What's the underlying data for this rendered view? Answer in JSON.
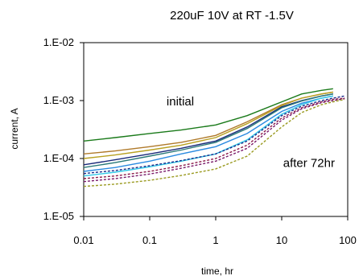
{
  "chart_data": {
    "type": "line",
    "title": "220uF 10V at RT -1.5V",
    "xlabel": "time, hr",
    "ylabel": "current, A",
    "x_scale": "log",
    "y_scale": "log",
    "xlim": [
      0.01,
      100
    ],
    "ylim": [
      1e-05,
      0.01
    ],
    "x_ticks": [
      0.01,
      0.1,
      1,
      10,
      100
    ],
    "x_tick_labels": [
      "0.01",
      "0.1",
      "1",
      "10",
      "100"
    ],
    "y_ticks": [
      1e-05,
      0.0001,
      0.001,
      0.01
    ],
    "y_tick_labels": [
      "1.E-05",
      "1.E-04",
      "1.E-03",
      "1.E-02"
    ],
    "grid": false,
    "annotations": [
      {
        "text": "initial",
        "x": 0.18,
        "y": 0.00083
      },
      {
        "text": "after 72hr",
        "x": 10.5,
        "y": 7.2e-05
      }
    ],
    "series": [
      {
        "style": "solid",
        "color": "#1a7a1a",
        "x": [
          0.01,
          0.03,
          0.1,
          0.3,
          1,
          3,
          10,
          20,
          40,
          60
        ],
        "y": [
          0.0002,
          0.00023,
          0.00027,
          0.00031,
          0.00038,
          0.00055,
          0.00095,
          0.0013,
          0.0015,
          0.0016
        ]
      },
      {
        "style": "solid",
        "color": "#b07a2a",
        "x": [
          0.01,
          0.03,
          0.1,
          0.3,
          1,
          3,
          10,
          20,
          40,
          60
        ],
        "y": [
          0.00012,
          0.000135,
          0.00016,
          0.00019,
          0.00025,
          0.00043,
          0.00085,
          0.0011,
          0.0013,
          0.0014
        ]
      },
      {
        "style": "solid",
        "color": "#b8a020",
        "x": [
          0.01,
          0.03,
          0.1,
          0.3,
          1,
          3,
          10,
          20,
          40,
          60
        ],
        "y": [
          0.0001,
          0.000115,
          0.00014,
          0.00017,
          0.00023,
          0.0004,
          0.00082,
          0.0011,
          0.0013,
          0.0014
        ]
      },
      {
        "style": "solid",
        "color": "#1a2a7a",
        "x": [
          0.01,
          0.03,
          0.1,
          0.3,
          1,
          3,
          10,
          20,
          40,
          60
        ],
        "y": [
          7.8e-05,
          9.5e-05,
          0.00012,
          0.00015,
          0.0002,
          0.00035,
          0.00078,
          0.001,
          0.0012,
          0.0013
        ]
      },
      {
        "style": "solid",
        "color": "#2a7a7a",
        "x": [
          0.01,
          0.03,
          0.1,
          0.3,
          1,
          3,
          10,
          20,
          40,
          60
        ],
        "y": [
          7e-05,
          8.5e-05,
          0.00011,
          0.00014,
          0.00019,
          0.00033,
          0.00075,
          0.00098,
          0.0012,
          0.0013
        ]
      },
      {
        "style": "solid",
        "color": "#2a8ae0",
        "x": [
          0.01,
          0.03,
          0.1,
          0.3,
          1,
          3,
          10,
          20,
          40,
          60
        ],
        "y": [
          6e-05,
          7e-05,
          9e-05,
          0.00012,
          0.00016,
          0.00027,
          0.00065,
          0.0009,
          0.0011,
          0.0012
        ]
      },
      {
        "style": "solid",
        "color": "#30c8e8",
        "x": [
          0.01,
          0.03,
          0.1,
          0.3,
          1,
          3,
          10,
          20,
          40,
          60
        ],
        "y": [
          5e-05,
          5.8e-05,
          7.2e-05,
          9e-05,
          0.00012,
          0.00021,
          0.00058,
          0.00085,
          0.0011,
          0.0012
        ]
      },
      {
        "style": "dashed",
        "color": "#1a2a8a",
        "x": [
          0.01,
          0.03,
          0.1,
          0.3,
          1,
          3,
          10,
          20,
          40,
          60,
          90
        ],
        "y": [
          5.5e-05,
          6.2e-05,
          7.5e-05,
          9.2e-05,
          0.00012,
          0.0002,
          0.00055,
          0.0008,
          0.001,
          0.0011,
          0.0012
        ]
      },
      {
        "style": "dashed",
        "color": "#8a1a4a",
        "x": [
          0.01,
          0.03,
          0.1,
          0.3,
          1,
          3,
          10,
          20,
          40,
          60,
          90
        ],
        "y": [
          4.5e-05,
          5e-05,
          6e-05,
          7.5e-05,
          0.0001,
          0.00017,
          0.0005,
          0.00075,
          0.00095,
          0.00105,
          0.0011
        ]
      },
      {
        "style": "dashed",
        "color": "#7a1a6a",
        "x": [
          0.01,
          0.03,
          0.1,
          0.3,
          1,
          3,
          10,
          20,
          40,
          60,
          90
        ],
        "y": [
          4e-05,
          4.5e-05,
          5.4e-05,
          6.8e-05,
          9e-05,
          0.00015,
          0.00046,
          0.00072,
          0.00092,
          0.001,
          0.00108
        ]
      },
      {
        "style": "dashed",
        "color": "#9a9a20",
        "x": [
          0.01,
          0.03,
          0.1,
          0.3,
          1,
          3,
          10,
          20,
          40,
          60,
          90
        ],
        "y": [
          3.3e-05,
          3.6e-05,
          4.2e-05,
          5.1e-05,
          6.6e-05,
          0.00011,
          0.00035,
          0.00062,
          0.00085,
          0.00095,
          0.00105
        ]
      }
    ]
  }
}
